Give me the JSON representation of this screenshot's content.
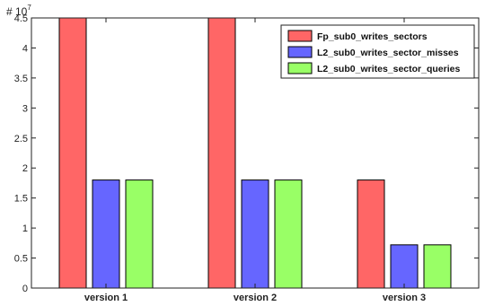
{
  "chart_data": {
    "type": "bar",
    "categories": [
      "version 1",
      "version 2",
      "version 3"
    ],
    "series": [
      {
        "name": "Fp_sub0_writes_sectors",
        "values": [
          45000000,
          45000000,
          18000000
        ],
        "color": "#ff6666"
      },
      {
        "name": "L2_sub0_writes_sector_misses",
        "values": [
          18000000,
          18000000,
          7200000
        ],
        "color": "#6666ff"
      },
      {
        "name": "L2_sub0_writes_sector_queries",
        "values": [
          18000000,
          18000000,
          7200000
        ],
        "color": "#99ff66"
      }
    ],
    "ylim": [
      0,
      45000000
    ],
    "y_ticks": [
      "0",
      "0.5",
      "1",
      "1.5",
      "2",
      "2.5",
      "3",
      "3.5",
      "4",
      "4.5"
    ],
    "y_exponent_base": "# 10",
    "y_exponent_power": "7",
    "grid": false,
    "legend_position": "top-right",
    "title": "",
    "xlabel": "",
    "ylabel": ""
  }
}
